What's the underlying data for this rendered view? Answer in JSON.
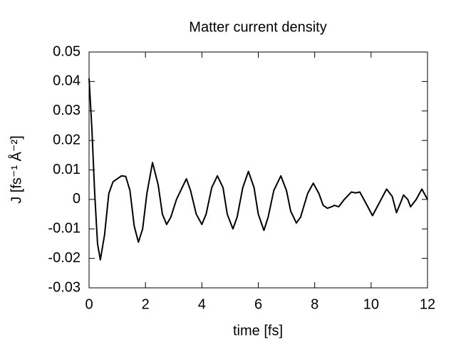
{
  "chart_data": {
    "type": "line",
    "title": "Matter current density",
    "xlabel": "time [fs]",
    "ylabel": "J [fs⁻¹ Å⁻²]",
    "x": [
      0,
      0.1,
      0.2,
      0.3,
      0.4,
      0.55,
      0.7,
      0.85,
      1.0,
      1.15,
      1.3,
      1.45,
      1.6,
      1.75,
      1.9,
      2.05,
      2.25,
      2.45,
      2.6,
      2.75,
      2.9,
      3.1,
      3.25,
      3.45,
      3.6,
      3.8,
      4.0,
      4.15,
      4.35,
      4.55,
      4.75,
      4.9,
      5.1,
      5.25,
      5.45,
      5.65,
      5.85,
      6.0,
      6.2,
      6.35,
      6.55,
      6.8,
      7.0,
      7.15,
      7.35,
      7.5,
      7.75,
      7.95,
      8.15,
      8.3,
      8.45,
      8.6,
      8.7,
      8.85,
      9.05,
      9.3,
      9.45,
      9.6,
      9.8,
      10.05,
      10.3,
      10.55,
      10.75,
      10.9,
      11.05,
      11.15,
      11.3,
      11.4,
      11.6,
      11.8,
      12.0
    ],
    "values": [
      0.041,
      0.024,
      0.002,
      -0.015,
      -0.0205,
      -0.012,
      0.002,
      0.006,
      0.007,
      0.008,
      0.0078,
      0.003,
      -0.009,
      -0.0145,
      -0.01,
      0.002,
      0.0125,
      0.005,
      -0.005,
      -0.0085,
      -0.006,
      0.0,
      0.003,
      0.007,
      0.003,
      -0.005,
      -0.0085,
      -0.005,
      0.004,
      0.008,
      0.004,
      -0.005,
      -0.01,
      -0.006,
      0.004,
      0.0095,
      0.004,
      -0.005,
      -0.0105,
      -0.006,
      0.003,
      0.008,
      0.003,
      -0.004,
      -0.008,
      -0.006,
      0.002,
      0.0055,
      0.002,
      -0.002,
      -0.003,
      -0.0025,
      -0.002,
      -0.0025,
      0.0,
      0.0025,
      0.0022,
      0.0025,
      -0.001,
      -0.0055,
      -0.001,
      0.0035,
      0.001,
      -0.0045,
      -0.001,
      0.0015,
      0.0,
      -0.0025,
      0.0,
      0.0035,
      0.0
    ],
    "color": "#000000",
    "xlim": [
      0,
      12
    ],
    "xticks": [
      0,
      2,
      4,
      6,
      8,
      10,
      12
    ],
    "ylim": [
      -0.03,
      0.05
    ],
    "yticks": [
      -0.03,
      -0.02,
      -0.01,
      0,
      0.01,
      0.02,
      0.03,
      0.04,
      0.05
    ],
    "grid": false
  }
}
